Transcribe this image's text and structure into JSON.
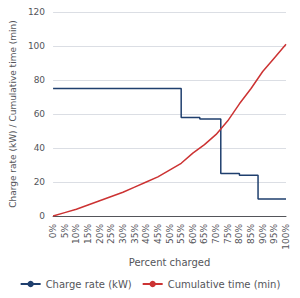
{
  "chart_data": {
    "type": "line",
    "xlabel": "Percent charged",
    "ylabel": "Charge rate (kW) / Cumulative time (min)",
    "xlim": [
      0,
      100
    ],
    "xticks": [
      {
        "value": 0,
        "label": "0%"
      },
      {
        "value": 5,
        "label": "5%"
      },
      {
        "value": 10,
        "label": "10%"
      },
      {
        "value": 15,
        "label": "15%"
      },
      {
        "value": 20,
        "label": "20%"
      },
      {
        "value": 25,
        "label": "25%"
      },
      {
        "value": 30,
        "label": "30%"
      },
      {
        "value": 35,
        "label": "35%"
      },
      {
        "value": 40,
        "label": "40%"
      },
      {
        "value": 45,
        "label": "45%"
      },
      {
        "value": 50,
        "label": "50%"
      },
      {
        "value": 55,
        "label": "55%"
      },
      {
        "value": 60,
        "label": "60%"
      },
      {
        "value": 65,
        "label": "65%"
      },
      {
        "value": 70,
        "label": "70%"
      },
      {
        "value": 75,
        "label": "75%"
      },
      {
        "value": 80,
        "label": "80%"
      },
      {
        "value": 85,
        "label": "85%"
      },
      {
        "value": 90,
        "label": "90%"
      },
      {
        "value": 95,
        "label": "95%"
      },
      {
        "value": 100,
        "label": "100%"
      }
    ],
    "ylim": [
      0,
      120
    ],
    "yticks": [
      0,
      20,
      40,
      60,
      80,
      100,
      120
    ],
    "grid": true,
    "legend": "bottom",
    "series": [
      {
        "name": "Charge rate (kW)",
        "color": "#1f3f6e",
        "x": [
          0,
          55,
          55,
          63,
          63,
          72,
          72,
          72,
          80,
          80,
          88,
          88,
          100
        ],
        "values": [
          75,
          75,
          58,
          58,
          57,
          57,
          25,
          25,
          25,
          24,
          24,
          10,
          10
        ]
      },
      {
        "name": "Cumulative time (min)",
        "color": "#cc3333",
        "x": [
          0,
          5,
          10,
          15,
          20,
          25,
          30,
          35,
          40,
          45,
          50,
          55,
          60,
          65,
          70,
          75,
          80,
          85,
          90,
          95,
          100
        ],
        "values": [
          0,
          2,
          4,
          6.5,
          9,
          11.5,
          14,
          17,
          20,
          23,
          27,
          31,
          37,
          42,
          48,
          56,
          66,
          75,
          85,
          93,
          101
        ]
      }
    ]
  }
}
